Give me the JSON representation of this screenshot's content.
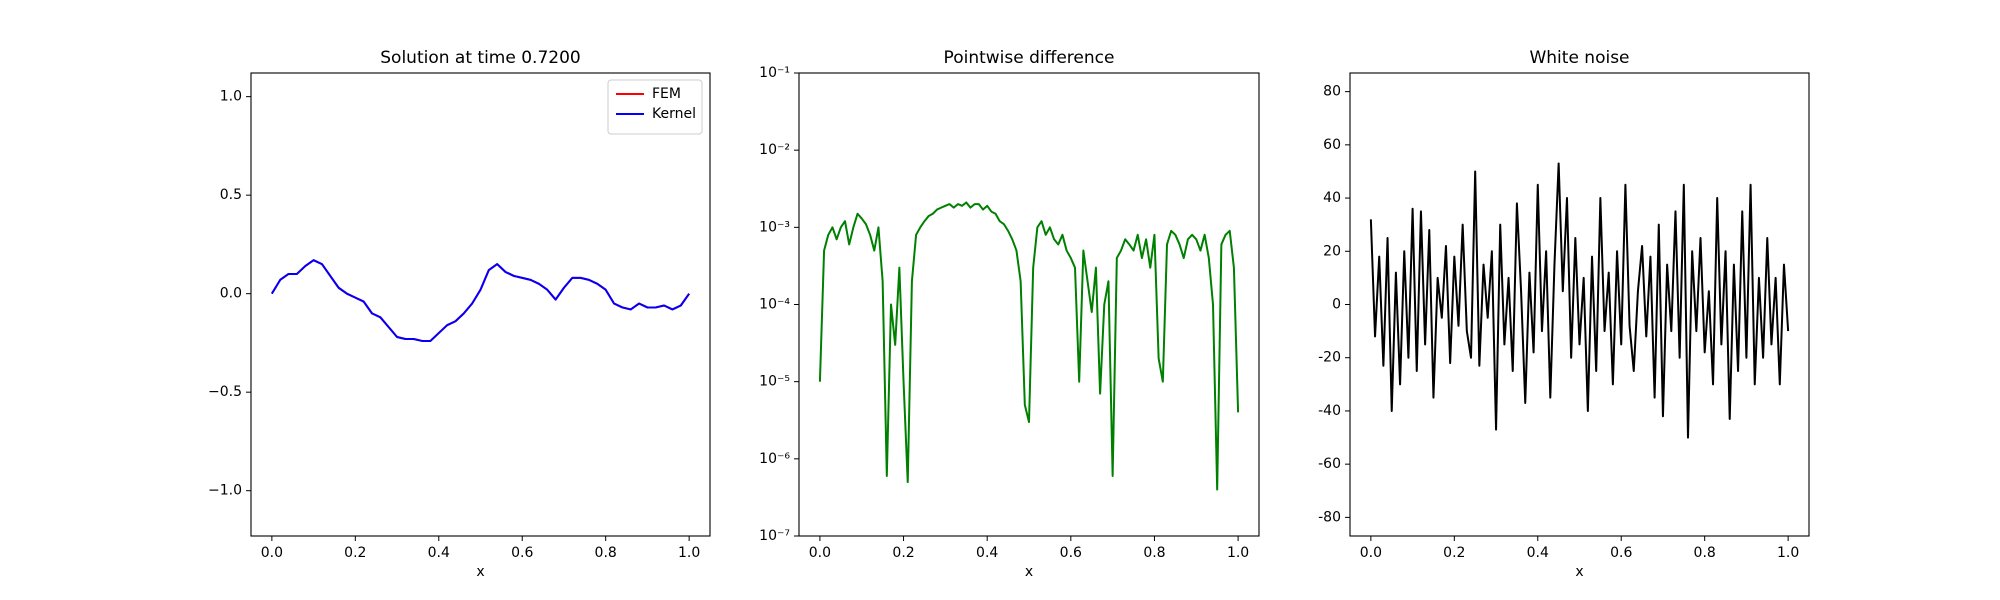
{
  "chart_data": [
    {
      "type": "line",
      "title": "Solution at time 0.7200",
      "xlabel": "x",
      "x": [
        0,
        0.02,
        0.04,
        0.06,
        0.08,
        0.1,
        0.12,
        0.14,
        0.16,
        0.18,
        0.2,
        0.22,
        0.24,
        0.26,
        0.28,
        0.3,
        0.32,
        0.34,
        0.36,
        0.38,
        0.4,
        0.42,
        0.44,
        0.46,
        0.48,
        0.5,
        0.52,
        0.54,
        0.56,
        0.58,
        0.6,
        0.62,
        0.64,
        0.66,
        0.68,
        0.7,
        0.72,
        0.74,
        0.76,
        0.78,
        0.8,
        0.82,
        0.84,
        0.86,
        0.88,
        0.9,
        0.92,
        0.94,
        0.96,
        0.98,
        1
      ],
      "series": [
        {
          "name": "FEM",
          "color": "#ff0000",
          "values": [
            0,
            0.07,
            0.1,
            0.1,
            0.14,
            0.17,
            0.15,
            0.09,
            0.03,
            0,
            -0.02,
            -0.04,
            -0.1,
            -0.12,
            -0.17,
            -0.22,
            -0.23,
            -0.23,
            -0.24,
            -0.24,
            -0.2,
            -0.16,
            -0.14,
            -0.1,
            -0.05,
            0.02,
            0.12,
            0.15,
            0.11,
            0.09,
            0.08,
            0.07,
            0.05,
            0.02,
            -0.03,
            0.03,
            0.08,
            0.08,
            0.07,
            0.05,
            0.02,
            -0.05,
            -0.07,
            -0.08,
            -0.05,
            -0.07,
            -0.07,
            -0.06,
            -0.08,
            -0.06,
            0
          ]
        },
        {
          "name": "Kernel",
          "color": "#0000ff",
          "values": [
            0,
            0.07,
            0.1,
            0.1,
            0.14,
            0.17,
            0.15,
            0.09,
            0.03,
            0,
            -0.02,
            -0.04,
            -0.1,
            -0.12,
            -0.17,
            -0.22,
            -0.23,
            -0.23,
            -0.24,
            -0.24,
            -0.2,
            -0.16,
            -0.14,
            -0.1,
            -0.05,
            0.02,
            0.12,
            0.15,
            0.11,
            0.09,
            0.08,
            0.07,
            0.05,
            0.02,
            -0.03,
            0.03,
            0.08,
            0.08,
            0.07,
            0.05,
            0.02,
            -0.05,
            -0.07,
            -0.08,
            -0.05,
            -0.07,
            -0.07,
            -0.06,
            -0.08,
            -0.06,
            0
          ]
        }
      ],
      "xlim": [
        -0.05,
        1.05
      ],
      "xticks": [
        {
          "value": 0,
          "label": "0.0"
        },
        0.2,
        0.4,
        0.6,
        0.8,
        {
          "value": 1,
          "label": "1.0"
        }
      ],
      "ylim": [
        -1.23,
        1.12
      ],
      "yticks": [
        {
          "value": -1,
          "label": "−1.0"
        },
        {
          "value": -0.5,
          "label": "−0.5"
        },
        {
          "value": 0,
          "label": "0.0"
        },
        0.5,
        {
          "value": 1,
          "label": "1.0"
        }
      ],
      "legend": "upper right"
    },
    {
      "type": "line",
      "title": "Pointwise difference",
      "xlabel": "x",
      "color": "#008000",
      "yscale": "log",
      "x": [
        0,
        0.01,
        0.02,
        0.03,
        0.04,
        0.05,
        0.06,
        0.07,
        0.08,
        0.09,
        0.1,
        0.11,
        0.12,
        0.13,
        0.14,
        0.15,
        0.16,
        0.17,
        0.18,
        0.19,
        0.2,
        0.21,
        0.22,
        0.23,
        0.24,
        0.25,
        0.26,
        0.27,
        0.28,
        0.29,
        0.3,
        0.31,
        0.32,
        0.33,
        0.34,
        0.35,
        0.36,
        0.37,
        0.38,
        0.39,
        0.4,
        0.41,
        0.42,
        0.43,
        0.44,
        0.45,
        0.46,
        0.47,
        0.48,
        0.49,
        0.5,
        0.51,
        0.52,
        0.53,
        0.54,
        0.55,
        0.56,
        0.57,
        0.58,
        0.59,
        0.6,
        0.61,
        0.62,
        0.63,
        0.64,
        0.65,
        0.66,
        0.67,
        0.68,
        0.69,
        0.7,
        0.71,
        0.72,
        0.73,
        0.74,
        0.75,
        0.76,
        0.77,
        0.78,
        0.79,
        0.8,
        0.81,
        0.82,
        0.83,
        0.84,
        0.85,
        0.86,
        0.87,
        0.88,
        0.89,
        0.9,
        0.91,
        0.92,
        0.93,
        0.94,
        0.95,
        0.96,
        0.97,
        0.98,
        0.99,
        1
      ],
      "values": [
        1e-05,
        0.0005,
        0.0008,
        0.001,
        0.0007,
        0.001,
        0.0012,
        0.0006,
        0.001,
        0.0015,
        0.0013,
        0.0011,
        0.0008,
        0.0005,
        0.001,
        0.0002,
        6e-07,
        0.0001,
        3e-05,
        0.0003,
        1e-05,
        5e-07,
        0.0002,
        0.0008,
        0.001,
        0.0012,
        0.0014,
        0.0015,
        0.0017,
        0.0018,
        0.0019,
        0.002,
        0.0018,
        0.002,
        0.0019,
        0.0021,
        0.0018,
        0.002,
        0.002,
        0.0017,
        0.0019,
        0.0016,
        0.0015,
        0.0012,
        0.0011,
        0.0009,
        0.0007,
        0.0005,
        0.0002,
        5e-06,
        3e-06,
        0.0003,
        0.001,
        0.0012,
        0.0008,
        0.001,
        0.0007,
        0.0006,
        0.0008,
        0.0005,
        0.0004,
        0.0003,
        1e-05,
        0.0005,
        0.0002,
        8e-05,
        0.0003,
        7e-06,
        0.0001,
        0.0002,
        6e-07,
        0.0004,
        0.0005,
        0.0007,
        0.0006,
        0.0005,
        0.0008,
        0.0004,
        0.0007,
        0.0003,
        0.0008,
        2e-05,
        1e-05,
        0.0006,
        0.0009,
        0.0008,
        0.0006,
        0.0004,
        0.0007,
        0.0008,
        0.0007,
        0.0005,
        0.0008,
        0.0004,
        0.0001,
        4e-07,
        0.0006,
        0.0008,
        0.0009,
        0.0003,
        4e-06
      ],
      "xlim": [
        -0.05,
        1.05
      ],
      "xticks": [
        {
          "value": 0,
          "label": "0.0"
        },
        0.2,
        0.4,
        0.6,
        0.8,
        {
          "value": 1,
          "label": "1.0"
        }
      ],
      "ylim": [
        1e-07,
        0.1
      ],
      "yticks": [
        {
          "value": 1e-07,
          "label": "10⁻⁷"
        },
        {
          "value": 1e-06,
          "label": "10⁻⁶"
        },
        {
          "value": 1e-05,
          "label": "10⁻⁵"
        },
        {
          "value": 0.0001,
          "label": "10⁻⁴"
        },
        {
          "value": 0.001,
          "label": "10⁻³"
        },
        {
          "value": 0.01,
          "label": "10⁻²"
        },
        {
          "value": 0.1,
          "label": "10⁻¹"
        }
      ]
    },
    {
      "type": "line",
      "title": "White noise",
      "xlabel": "x",
      "color": "#000000",
      "x": [
        0,
        0.01,
        0.02,
        0.03,
        0.04,
        0.05,
        0.06,
        0.07,
        0.08,
        0.09,
        0.1,
        0.11,
        0.12,
        0.13,
        0.14,
        0.15,
        0.16,
        0.17,
        0.18,
        0.19,
        0.2,
        0.21,
        0.22,
        0.23,
        0.24,
        0.25,
        0.26,
        0.27,
        0.28,
        0.29,
        0.3,
        0.31,
        0.32,
        0.33,
        0.34,
        0.35,
        0.36,
        0.37,
        0.38,
        0.39,
        0.4,
        0.41,
        0.42,
        0.43,
        0.44,
        0.45,
        0.46,
        0.47,
        0.48,
        0.49,
        0.5,
        0.51,
        0.52,
        0.53,
        0.54,
        0.55,
        0.56,
        0.57,
        0.58,
        0.59,
        0.6,
        0.61,
        0.62,
        0.63,
        0.64,
        0.65,
        0.66,
        0.67,
        0.68,
        0.69,
        0.7,
        0.71,
        0.72,
        0.73,
        0.74,
        0.75,
        0.76,
        0.77,
        0.78,
        0.79,
        0.8,
        0.81,
        0.82,
        0.83,
        0.84,
        0.85,
        0.86,
        0.87,
        0.88,
        0.89,
        0.9,
        0.91,
        0.92,
        0.93,
        0.94,
        0.95,
        0.96,
        0.97,
        0.98,
        0.99,
        1
      ],
      "values": [
        32,
        -12,
        18,
        -23,
        25,
        -40,
        12,
        -30,
        20,
        -20,
        36,
        -25,
        35,
        -15,
        28,
        -35,
        10,
        -5,
        22,
        -22,
        18,
        -8,
        30,
        -10,
        -20,
        50,
        -23,
        15,
        -5,
        20,
        -47,
        30,
        -15,
        10,
        -25,
        38,
        5,
        -37,
        12,
        -18,
        45,
        -10,
        20,
        -35,
        15,
        53,
        5,
        40,
        -20,
        25,
        -15,
        10,
        -40,
        18,
        -25,
        40,
        -10,
        12,
        -30,
        20,
        -15,
        45,
        -8,
        -25,
        5,
        22,
        -12,
        18,
        -35,
        30,
        -42,
        15,
        -10,
        35,
        -20,
        45,
        -50,
        20,
        -10,
        25,
        -18,
        5,
        -30,
        40,
        -15,
        20,
        -43,
        15,
        -25,
        35,
        -20,
        45,
        -30,
        10,
        -20,
        25,
        -15,
        10,
        -30,
        15,
        -10
      ],
      "xlim": [
        -0.05,
        1.05
      ],
      "xticks": [
        {
          "value": 0,
          "label": "0.0"
        },
        0.2,
        0.4,
        0.6,
        0.8,
        {
          "value": 1,
          "label": "1.0"
        }
      ],
      "ylim": [
        -87,
        87
      ],
      "yticks": [
        -80,
        -60,
        -40,
        -20,
        0,
        20,
        40,
        60,
        80
      ]
    }
  ]
}
